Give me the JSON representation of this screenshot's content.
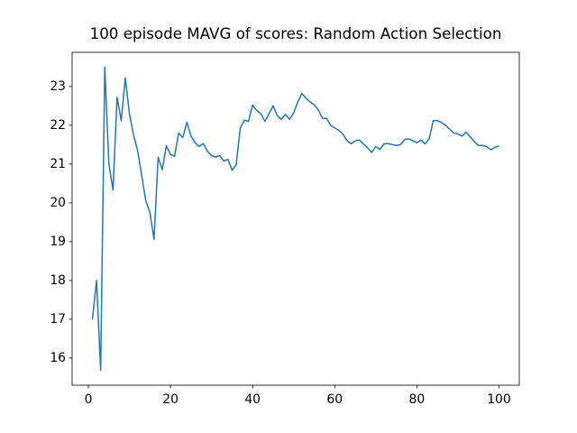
{
  "chart_data": {
    "type": "line",
    "title": "100 episode MAVG of scores: Random Action Selection",
    "x": [
      1,
      2,
      3,
      4,
      5,
      6,
      7,
      8,
      9,
      10,
      11,
      12,
      13,
      14,
      15,
      16,
      17,
      18,
      19,
      20,
      21,
      22,
      23,
      24,
      25,
      26,
      27,
      28,
      29,
      30,
      31,
      32,
      33,
      34,
      35,
      36,
      37,
      38,
      39,
      40,
      41,
      42,
      43,
      44,
      45,
      46,
      47,
      48,
      49,
      50,
      51,
      52,
      53,
      54,
      55,
      56,
      57,
      58,
      59,
      60,
      61,
      62,
      63,
      64,
      65,
      66,
      67,
      68,
      69,
      70,
      71,
      72,
      73,
      74,
      75,
      76,
      77,
      78,
      79,
      80,
      81,
      82,
      83,
      84,
      85,
      86,
      87,
      88,
      89,
      90,
      91,
      92,
      93,
      94,
      95,
      96,
      97,
      98,
      99,
      100
    ],
    "series": [
      {
        "color": "#1f77b4",
        "values": [
          17.0,
          18.0,
          15.68,
          23.5,
          21.0,
          20.33,
          22.72,
          22.12,
          23.22,
          22.3,
          21.75,
          21.35,
          20.7,
          20.05,
          19.75,
          19.06,
          21.18,
          20.85,
          21.47,
          21.25,
          21.2,
          21.8,
          21.68,
          22.08,
          21.72,
          21.55,
          21.45,
          21.53,
          21.33,
          21.22,
          21.18,
          21.22,
          21.08,
          21.12,
          20.84,
          20.98,
          21.93,
          22.13,
          22.1,
          22.52,
          22.38,
          22.3,
          22.1,
          22.3,
          22.5,
          22.25,
          22.15,
          22.28,
          22.15,
          22.32,
          22.6,
          22.82,
          22.7,
          22.6,
          22.53,
          22.4,
          22.18,
          22.18,
          22.0,
          21.93,
          21.87,
          21.77,
          21.6,
          21.52,
          21.6,
          21.62,
          21.52,
          21.42,
          21.3,
          21.45,
          21.38,
          21.52,
          21.53,
          21.5,
          21.48,
          21.5,
          21.63,
          21.65,
          21.6,
          21.55,
          21.62,
          21.52,
          21.65,
          22.12,
          22.12,
          22.07,
          22.0,
          21.9,
          21.8,
          21.78,
          21.72,
          21.82,
          21.7,
          21.58,
          21.48,
          21.48,
          21.45,
          21.37,
          21.43,
          21.47
        ]
      }
    ],
    "xlim": [
      -3.95,
      104.95
    ],
    "xticks": [
      0,
      20,
      40,
      60,
      80,
      100
    ],
    "ylim": [
      15.3,
      23.88
    ],
    "yticks": [
      16,
      17,
      18,
      19,
      20,
      21,
      22,
      23
    ]
  }
}
